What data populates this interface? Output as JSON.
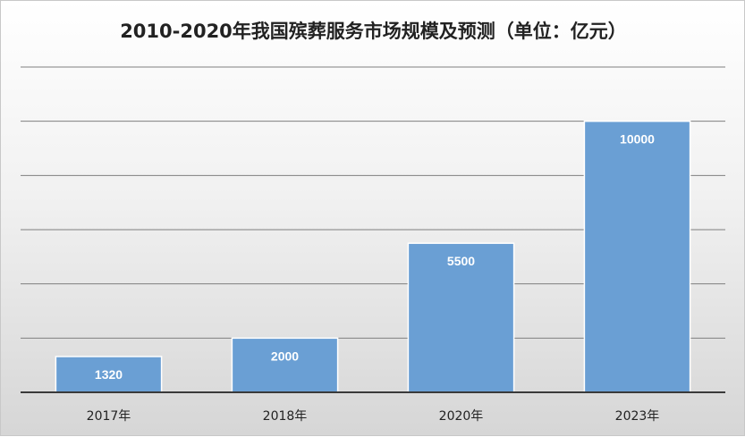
{
  "chart_data": {
    "type": "bar",
    "title": "2010-2020年我国殡葬服务市场规模及预测（单位：亿元）",
    "categories": [
      "2017年",
      "2018年",
      "2020年",
      "2023年"
    ],
    "values": [
      1320,
      2000,
      5500,
      10000
    ],
    "data_labels": [
      "1320",
      "2000",
      "5500",
      "10000"
    ],
    "ylim": [
      0,
      12000
    ],
    "ytick_step": 2000,
    "grid": true,
    "legend": "none",
    "bar_color": "#6a9fd4"
  }
}
